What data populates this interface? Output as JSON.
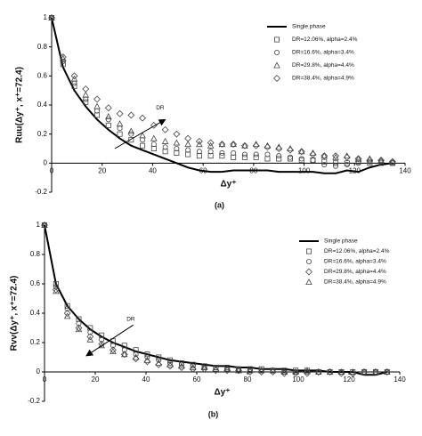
{
  "chart_data": [
    {
      "type": "line",
      "caption": "(a)",
      "ylabel": "Ruu(Δy⁺, x⁺=72.4)",
      "xlabel": "Δy⁺",
      "x": [
        0,
        4.5,
        9,
        13.5,
        18,
        22.5,
        27,
        31.5,
        36,
        40.5,
        45,
        49.5,
        54,
        58.5,
        63,
        67.5,
        72,
        76.5,
        81,
        85.5,
        90,
        94.5,
        99,
        103.5,
        108,
        112.5,
        117,
        121.5,
        126,
        130.5,
        135
      ],
      "series": [
        {
          "name": "Single phase",
          "color": "#000000",
          "marker": "none",
          "values": [
            1,
            0.66,
            0.5,
            0.39,
            0.3,
            0.23,
            0.17,
            0.12,
            0.09,
            0.06,
            0.03,
            0.0,
            -0.03,
            -0.05,
            -0.06,
            -0.06,
            -0.05,
            -0.05,
            -0.05,
            -0.05,
            -0.06,
            -0.06,
            -0.06,
            -0.06,
            -0.07,
            -0.07,
            -0.05,
            -0.06,
            -0.03,
            -0.01,
            0.0
          ]
        },
        {
          "name": "DR=12.06%, alpha=2.4%",
          "color": "#444444",
          "marker": "square",
          "values": [
            1,
            0.68,
            0.53,
            0.42,
            0.33,
            0.26,
            0.2,
            0.16,
            0.12,
            0.1,
            0.08,
            0.07,
            0.06,
            0.05,
            0.05,
            0.05,
            0.04,
            0.04,
            0.04,
            0.03,
            0.03,
            0.03,
            0.02,
            0.02,
            0.01,
            0.0,
            0.0,
            0.01,
            0.0,
            0.0,
            0.0
          ]
        },
        {
          "name": "DR=16.6%, alpha=3.4%",
          "color": "#444444",
          "marker": "circle",
          "values": [
            1,
            0.7,
            0.55,
            0.44,
            0.36,
            0.3,
            0.24,
            0.2,
            0.16,
            0.13,
            0.11,
            0.1,
            0.09,
            0.08,
            0.08,
            0.07,
            0.07,
            0.06,
            0.06,
            0.06,
            0.05,
            0.04,
            0.03,
            0.02,
            -0.01,
            -0.02,
            -0.01,
            0.0,
            0.01,
            0.01,
            0.0
          ]
        },
        {
          "name": "DR=29.8%, alpha=4.4%",
          "color": "#444444",
          "marker": "triangle",
          "values": [
            1,
            0.72,
            0.58,
            0.47,
            0.39,
            0.32,
            0.27,
            0.22,
            0.19,
            0.17,
            0.15,
            0.14,
            0.13,
            0.13,
            0.12,
            0.13,
            0.13,
            0.12,
            0.13,
            0.12,
            0.11,
            0.1,
            0.08,
            0.07,
            0.05,
            0.04,
            0.05,
            0.03,
            0.03,
            0.02,
            0.01
          ]
        },
        {
          "name": "DR=38.4%, alpha=4.9%",
          "color": "#444444",
          "marker": "diamond",
          "values": [
            1,
            0.73,
            0.6,
            0.51,
            0.44,
            0.38,
            0.34,
            0.33,
            0.31,
            0.26,
            0.23,
            0.2,
            0.17,
            0.15,
            0.14,
            0.13,
            0.13,
            0.12,
            0.12,
            0.11,
            0.1,
            0.09,
            0.08,
            0.06,
            0.05,
            0.05,
            0.04,
            0.03,
            0.02,
            0.02,
            0.01
          ]
        }
      ],
      "annotations": [
        {
          "text": "DR"
        }
      ],
      "xlim": [
        0,
        140
      ],
      "xticks": [
        0,
        20,
        40,
        60,
        80,
        100,
        120,
        140
      ],
      "ylim": [
        -0.2,
        1
      ],
      "yticks": [
        -0.2,
        0,
        0.2,
        0.4,
        0.6,
        0.8,
        1
      ],
      "legend": "upper right"
    },
    {
      "type": "line",
      "caption": "(b)",
      "ylabel": "Rvv(Δy⁺, x⁺=72.4)",
      "xlabel": "Δy⁺",
      "x": [
        0,
        4.5,
        9,
        13.5,
        18,
        22.5,
        27,
        31.5,
        36,
        40.5,
        45,
        49.5,
        54,
        58.5,
        63,
        67.5,
        72,
        76.5,
        81,
        85.5,
        90,
        94.5,
        99,
        103.5,
        108,
        112.5,
        117,
        121.5,
        126,
        130.5,
        135
      ],
      "series": [
        {
          "name": "Single phase",
          "color": "#000000",
          "marker": "none",
          "values": [
            1,
            0.6,
            0.45,
            0.36,
            0.29,
            0.24,
            0.2,
            0.17,
            0.14,
            0.12,
            0.1,
            0.08,
            0.07,
            0.06,
            0.05,
            0.04,
            0.04,
            0.03,
            0.03,
            0.02,
            0.02,
            0.02,
            0.01,
            0.01,
            0.01,
            0.0,
            0.0,
            0.0,
            -0.02,
            -0.02,
            0.0
          ]
        },
        {
          "name": "DR=12.06%, alpha=2.4%",
          "color": "#444444",
          "marker": "square",
          "values": [
            1,
            0.6,
            0.45,
            0.36,
            0.3,
            0.25,
            0.21,
            0.18,
            0.15,
            0.12,
            0.1,
            0.08,
            0.06,
            0.05,
            0.04,
            0.03,
            0.03,
            0.02,
            0.02,
            0.02,
            0.01,
            0.01,
            0.01,
            0.01,
            0.0,
            0.0,
            0.0,
            0.0,
            0.0,
            0.0,
            0.0
          ]
        },
        {
          "name": "DR=16.6%, alpha=3.4%",
          "color": "#444444",
          "marker": "circle",
          "values": [
            1,
            0.58,
            0.43,
            0.33,
            0.27,
            0.22,
            0.18,
            0.15,
            0.12,
            0.1,
            0.08,
            0.06,
            0.05,
            0.04,
            0.03,
            0.03,
            0.02,
            0.02,
            0.01,
            0.01,
            0.01,
            0.0,
            0.0,
            0.0,
            0.0,
            0.0,
            0.0,
            -0.01,
            0.0,
            0.0,
            0.0
          ]
        },
        {
          "name": "DR=29.8%, alpha=4.4%",
          "color": "#444444",
          "marker": "diamond",
          "values": [
            1,
            0.56,
            0.4,
            0.3,
            0.24,
            0.19,
            0.15,
            0.12,
            0.09,
            0.07,
            0.05,
            0.04,
            0.03,
            0.02,
            0.02,
            0.01,
            0.01,
            0.01,
            0.0,
            0.0,
            0.0,
            -0.01,
            -0.01,
            -0.01,
            0.0,
            0.0,
            -0.01,
            -0.01,
            0.0,
            0.0,
            0.0
          ]
        },
        {
          "name": "DR=38.4%, alpha=4.9%",
          "color": "#444444",
          "marker": "triangle",
          "values": [
            1,
            0.55,
            0.38,
            0.29,
            0.22,
            0.18,
            0.14,
            0.12,
            0.1,
            0.08,
            0.06,
            0.05,
            0.04,
            0.03,
            0.03,
            0.02,
            0.02,
            0.01,
            0.01,
            0.01,
            0.01,
            0.0,
            0.0,
            0.01,
            0.0,
            0.0,
            0.0,
            0.0,
            0.0,
            0.0,
            0.0
          ]
        }
      ],
      "annotations": [
        {
          "text": "DR"
        }
      ],
      "xlim": [
        0,
        140
      ],
      "xticks": [
        0,
        20,
        40,
        60,
        80,
        100,
        120,
        140
      ],
      "ylim": [
        -0.2,
        1
      ],
      "yticks": [
        -0.2,
        0,
        0.2,
        0.4,
        0.6,
        0.8,
        1
      ],
      "legend": "upper right"
    }
  ]
}
